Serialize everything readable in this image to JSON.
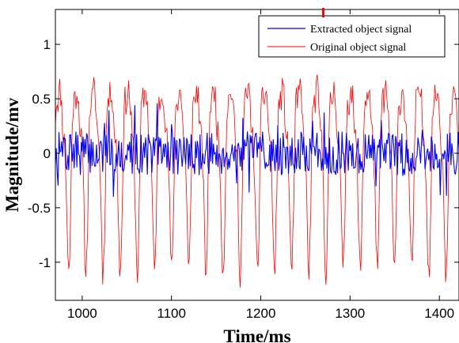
{
  "chart_data": {
    "type": "line",
    "xlabel": "Time/ms",
    "ylabel": "Magnitude/mv",
    "xlim": [
      970,
      1422
    ],
    "ylim": [
      -1.35,
      1.32
    ],
    "x_ticks": [
      1000,
      1100,
      1200,
      1300,
      1400
    ],
    "y_ticks": [
      -1,
      -0.5,
      0,
      0.5,
      1
    ],
    "x_tick_labels": [
      "1000",
      "1100",
      "1200",
      "1300",
      "1400"
    ],
    "y_tick_labels": [
      "-1",
      "-0.5",
      "0",
      "0.5",
      "1"
    ],
    "grid": false,
    "legend_position": "top-right",
    "series": [
      {
        "name": "Extracted object signal",
        "color": "#0000ff",
        "x_start": 970,
        "x_step": 1,
        "noise_seed": 7,
        "amplitude": 0.2,
        "spike_prob": 0.1,
        "spike_scale": 0.28,
        "y_min": -0.55,
        "y_max": 0.6
      },
      {
        "name": "Original object signal",
        "color": "#ff0000",
        "x_start": 970,
        "x_step": 1,
        "period": 19.2,
        "harmonics": [
          {
            "amp": 0.72,
            "phase": 0.0
          },
          {
            "amp": 0.26,
            "phase": 1.1
          },
          {
            "amp": 0.14,
            "phase": 2.3
          }
        ],
        "noise_seed": 11,
        "noise_amp": 0.14,
        "y_min": -1.32,
        "y_max": 1.3
      }
    ],
    "annotation_marker": {
      "x": 1270,
      "color": "#ff0000"
    }
  }
}
